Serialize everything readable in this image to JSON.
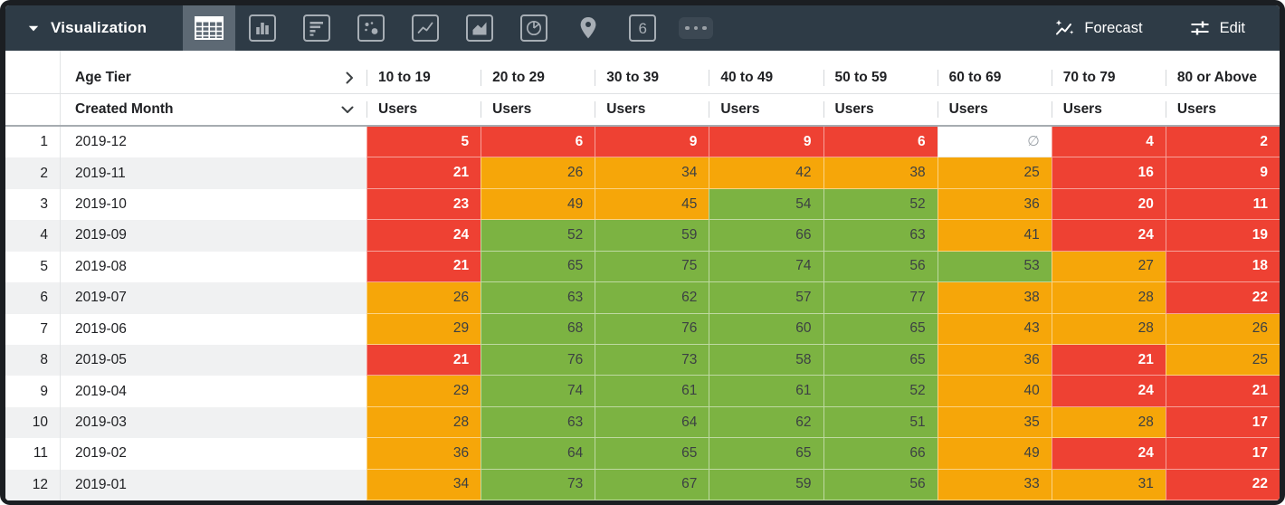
{
  "toolbar": {
    "title": "Visualization",
    "chart_types": [
      "table",
      "column",
      "bar",
      "scatter",
      "line",
      "area",
      "pie",
      "map",
      "single-value",
      "more-options"
    ],
    "selected_chart_type": "table",
    "single_value_glyph": "6",
    "forecast_label": "Forecast",
    "edit_label": "Edit"
  },
  "table": {
    "pivot_field_label": "Age Tier",
    "row_field_label": "Created Month",
    "measure_label": "Users",
    "null_symbol": "∅",
    "columns": [
      "10 to 19",
      "20 to 29",
      "30 to 39",
      "40 to 49",
      "50 to 59",
      "60 to 69",
      "70 to 79",
      "80 or Above"
    ],
    "rows": [
      {
        "num": "1",
        "month": "2019-12",
        "values": [
          5,
          6,
          9,
          9,
          6,
          null,
          4,
          2
        ],
        "colors": [
          "r",
          "r",
          "r",
          "r",
          "r",
          "n",
          "r",
          "r"
        ]
      },
      {
        "num": "2",
        "month": "2019-11",
        "values": [
          21,
          26,
          34,
          42,
          38,
          25,
          16,
          9
        ],
        "colors": [
          "r",
          "o",
          "o",
          "o",
          "o",
          "o",
          "r",
          "r"
        ]
      },
      {
        "num": "3",
        "month": "2019-10",
        "values": [
          23,
          49,
          45,
          54,
          52,
          36,
          20,
          11
        ],
        "colors": [
          "r",
          "o",
          "o",
          "g",
          "g",
          "o",
          "r",
          "r"
        ]
      },
      {
        "num": "4",
        "month": "2019-09",
        "values": [
          24,
          52,
          59,
          66,
          63,
          41,
          24,
          19
        ],
        "colors": [
          "r",
          "g",
          "g",
          "g",
          "g",
          "o",
          "r",
          "r"
        ]
      },
      {
        "num": "5",
        "month": "2019-08",
        "values": [
          21,
          65,
          75,
          74,
          56,
          53,
          27,
          18
        ],
        "colors": [
          "r",
          "g",
          "g",
          "g",
          "g",
          "g",
          "o",
          "r"
        ]
      },
      {
        "num": "6",
        "month": "2019-07",
        "values": [
          26,
          63,
          62,
          57,
          77,
          38,
          28,
          22
        ],
        "colors": [
          "o",
          "g",
          "g",
          "g",
          "g",
          "o",
          "o",
          "r"
        ]
      },
      {
        "num": "7",
        "month": "2019-06",
        "values": [
          29,
          68,
          76,
          60,
          65,
          43,
          28,
          26
        ],
        "colors": [
          "o",
          "g",
          "g",
          "g",
          "g",
          "o",
          "o",
          "o"
        ]
      },
      {
        "num": "8",
        "month": "2019-05",
        "values": [
          21,
          76,
          73,
          58,
          65,
          36,
          21,
          25
        ],
        "colors": [
          "r",
          "g",
          "g",
          "g",
          "g",
          "o",
          "r",
          "o"
        ]
      },
      {
        "num": "9",
        "month": "2019-04",
        "values": [
          29,
          74,
          61,
          61,
          52,
          40,
          24,
          21
        ],
        "colors": [
          "o",
          "g",
          "g",
          "g",
          "g",
          "o",
          "r",
          "r"
        ]
      },
      {
        "num": "10",
        "month": "2019-03",
        "values": [
          28,
          63,
          64,
          62,
          51,
          35,
          28,
          17
        ],
        "colors": [
          "o",
          "g",
          "g",
          "g",
          "g",
          "o",
          "o",
          "r"
        ]
      },
      {
        "num": "11",
        "month": "2019-02",
        "values": [
          36,
          64,
          65,
          65,
          66,
          49,
          24,
          17
        ],
        "colors": [
          "o",
          "g",
          "g",
          "g",
          "g",
          "o",
          "r",
          "r"
        ]
      },
      {
        "num": "12",
        "month": "2019-01",
        "values": [
          34,
          73,
          67,
          59,
          56,
          33,
          31,
          22
        ],
        "colors": [
          "o",
          "g",
          "g",
          "g",
          "g",
          "o",
          "o",
          "r"
        ]
      }
    ]
  },
  "cell_styles": {
    "r": {
      "bg": "#ee4133",
      "text": "#ffffff",
      "bold": true
    },
    "o": {
      "bg": "#f6a609",
      "text": "#3c4043",
      "bold": false
    },
    "g": {
      "bg": "#7cb342",
      "text": "#3c4043",
      "bold": false
    },
    "n": {
      "bg": "#ffffff",
      "text": "#9aa0a6",
      "bold": false
    }
  },
  "palette": {
    "toolbar_bg": "#2e3b46",
    "toolbar_selected_bg": "#5d6974",
    "toolbar_icon": "#a7aeb5",
    "stripe": "#f0f1f2",
    "header_text": "#202124"
  }
}
